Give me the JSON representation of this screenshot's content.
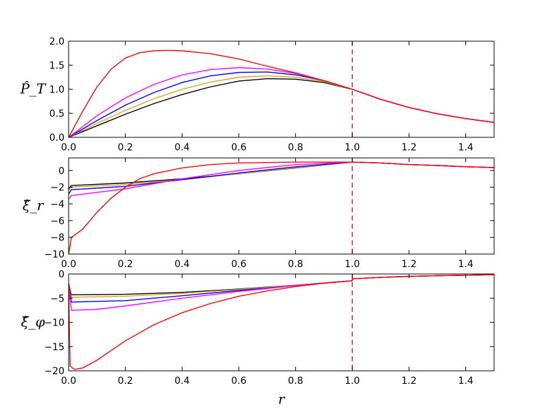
{
  "figure": {
    "xlabel": "r",
    "line_colors": [
      "#000000",
      "#daa520",
      "#0000ff",
      "#ff00ff",
      "#ff0000"
    ]
  },
  "chart_data": [
    {
      "type": "line",
      "ylabel": "P̂_T",
      "xlim": [
        0,
        1.5
      ],
      "ylim": [
        0,
        2.0
      ],
      "xticks": [
        "0.0",
        "0.2",
        "0.4",
        "0.6",
        "0.8",
        "1.0",
        "1.2",
        "1.4"
      ],
      "yticks": [
        "0.0",
        "0.5",
        "1.0",
        "1.5",
        "2.0"
      ],
      "vline": {
        "x": 1.0,
        "color": "#ff0000",
        "style": "dashed"
      },
      "series": [
        {
          "color": "#000000",
          "x": [
            0,
            0.1,
            0.2,
            0.3,
            0.4,
            0.5,
            0.6,
            0.7,
            0.8,
            0.9,
            1.0,
            1.1,
            1.2,
            1.3,
            1.4,
            1.5
          ],
          "y": [
            0,
            0.24,
            0.48,
            0.7,
            0.89,
            1.05,
            1.17,
            1.22,
            1.21,
            1.14,
            1.0,
            0.79,
            0.62,
            0.49,
            0.39,
            0.31
          ]
        },
        {
          "color": "#daa520",
          "x": [
            0,
            0.1,
            0.2,
            0.3,
            0.4,
            0.5,
            0.6,
            0.7,
            0.8,
            0.9,
            1.0,
            1.1,
            1.2,
            1.3,
            1.4,
            1.5
          ],
          "y": [
            0,
            0.29,
            0.56,
            0.8,
            1.0,
            1.15,
            1.25,
            1.28,
            1.25,
            1.16,
            1.0,
            0.79,
            0.62,
            0.49,
            0.39,
            0.31
          ]
        },
        {
          "color": "#0000ff",
          "x": [
            0,
            0.1,
            0.2,
            0.3,
            0.4,
            0.5,
            0.6,
            0.7,
            0.8,
            0.9,
            1.0,
            1.1,
            1.2,
            1.3,
            1.4,
            1.5
          ],
          "y": [
            0,
            0.35,
            0.67,
            0.93,
            1.14,
            1.28,
            1.35,
            1.36,
            1.3,
            1.18,
            1.0,
            0.79,
            0.62,
            0.49,
            0.39,
            0.31
          ]
        },
        {
          "color": "#ff00ff",
          "x": [
            0,
            0.1,
            0.2,
            0.3,
            0.4,
            0.5,
            0.6,
            0.7,
            0.8,
            0.9,
            1.0,
            1.1,
            1.2,
            1.3,
            1.4,
            1.5
          ],
          "y": [
            0,
            0.45,
            0.82,
            1.1,
            1.3,
            1.41,
            1.45,
            1.42,
            1.33,
            1.18,
            1.0,
            0.79,
            0.62,
            0.49,
            0.39,
            0.31
          ]
        },
        {
          "color": "#ff0000",
          "x": [
            0,
            0.05,
            0.1,
            0.15,
            0.2,
            0.25,
            0.3,
            0.35,
            0.4,
            0.5,
            0.6,
            0.7,
            0.8,
            0.9,
            1.0,
            1.1,
            1.2,
            1.3,
            1.4,
            1.5
          ],
          "y": [
            0,
            0.55,
            1.05,
            1.42,
            1.65,
            1.76,
            1.8,
            1.81,
            1.8,
            1.74,
            1.63,
            1.48,
            1.34,
            1.18,
            1.0,
            0.79,
            0.62,
            0.49,
            0.39,
            0.31
          ]
        }
      ]
    },
    {
      "type": "line",
      "ylabel": "ξ̂_r",
      "xlim": [
        0,
        1.5
      ],
      "ylim": [
        -10,
        1.5
      ],
      "xticks": [
        "0.0",
        "0.2",
        "0.4",
        "0.6",
        "0.8",
        "1.0",
        "1.2",
        "1.4"
      ],
      "yticks": [
        "−10",
        "−8",
        "−6",
        "−4",
        "−2",
        "0"
      ],
      "vline": {
        "x": 1.0,
        "color": "#ff0000",
        "style": "dashed"
      },
      "series": [
        {
          "color": "#000000",
          "x": [
            0,
            0.01,
            0.2,
            0.4,
            0.6,
            0.8,
            1.0,
            1.1,
            1.2,
            1.3,
            1.4,
            1.5
          ],
          "y": [
            -2.2,
            -1.8,
            -1.5,
            -1.0,
            -0.4,
            0.3,
            1.0,
            0.9,
            0.7,
            0.6,
            0.45,
            0.35
          ]
        },
        {
          "color": "#daa520",
          "x": [
            0,
            0.01,
            0.2,
            0.4,
            0.6,
            0.8,
            1.0,
            1.1,
            1.2,
            1.3,
            1.4,
            1.5
          ],
          "y": [
            -2.4,
            -2.0,
            -1.7,
            -1.1,
            -0.4,
            0.35,
            1.0,
            0.9,
            0.7,
            0.6,
            0.45,
            0.35
          ]
        },
        {
          "color": "#0000ff",
          "x": [
            0,
            0.01,
            0.2,
            0.4,
            0.6,
            0.8,
            1.0,
            1.1,
            1.2,
            1.3,
            1.4,
            1.5
          ],
          "y": [
            -2.8,
            -2.3,
            -1.9,
            -1.1,
            -0.3,
            0.45,
            1.0,
            0.9,
            0.7,
            0.6,
            0.45,
            0.35
          ]
        },
        {
          "color": "#ff00ff",
          "x": [
            0,
            0.01,
            0.2,
            0.4,
            0.6,
            0.8,
            1.0,
            1.1,
            1.2,
            1.3,
            1.4,
            1.5
          ],
          "y": [
            -3.4,
            -3.0,
            -2.2,
            -1.0,
            0.0,
            0.7,
            1.0,
            0.9,
            0.7,
            0.6,
            0.45,
            0.35
          ]
        },
        {
          "color": "#ff0000",
          "x": [
            0,
            0.01,
            0.05,
            0.1,
            0.15,
            0.2,
            0.25,
            0.3,
            0.4,
            0.5,
            0.6,
            0.8,
            1.0,
            1.1,
            1.2,
            1.3,
            1.4,
            1.5
          ],
          "y": [
            -10,
            -8.0,
            -7.0,
            -5.0,
            -3.3,
            -2.0,
            -1.0,
            -0.4,
            0.3,
            0.7,
            0.9,
            1.0,
            1.0,
            0.9,
            0.7,
            0.6,
            0.45,
            0.35
          ]
        }
      ]
    },
    {
      "type": "line",
      "ylabel": "ξ̂_φ",
      "xlim": [
        0,
        1.5
      ],
      "ylim": [
        -20,
        0
      ],
      "xticks": [
        "0.0",
        "0.2",
        "0.4",
        "0.6",
        "0.8",
        "1.0",
        "1.2",
        "1.4"
      ],
      "yticks": [
        "−20",
        "−15",
        "−10",
        "−5",
        "0"
      ],
      "vline": {
        "x": 1.0,
        "color": "#ff0000",
        "style": "dashed"
      },
      "series": [
        {
          "color": "#000000",
          "x": [
            0,
            0.01,
            0.2,
            0.4,
            0.6,
            0.8,
            1.0,
            1.0001,
            1.1,
            1.2,
            1.3,
            1.4,
            1.5
          ],
          "y": [
            -2.0,
            -4.3,
            -4.2,
            -3.8,
            -3.1,
            -2.3,
            -1.4,
            -1.0,
            -0.7,
            -0.5,
            -0.35,
            -0.25,
            -0.15
          ]
        },
        {
          "color": "#daa520",
          "x": [
            0,
            0.01,
            0.2,
            0.4,
            0.6,
            0.8,
            1.0,
            1.0001,
            1.1,
            1.2,
            1.3,
            1.4,
            1.5
          ],
          "y": [
            -2.0,
            -4.8,
            -4.6,
            -4.0,
            -3.2,
            -2.3,
            -1.4,
            -1.0,
            -0.7,
            -0.5,
            -0.35,
            -0.25,
            -0.15
          ]
        },
        {
          "color": "#0000ff",
          "x": [
            0,
            0.01,
            0.2,
            0.4,
            0.6,
            0.8,
            1.0,
            1.0001,
            1.1,
            1.2,
            1.3,
            1.4,
            1.5
          ],
          "y": [
            -2.0,
            -5.8,
            -5.5,
            -4.5,
            -3.4,
            -2.4,
            -1.4,
            -1.0,
            -0.7,
            -0.5,
            -0.35,
            -0.25,
            -0.15
          ]
        },
        {
          "color": "#ff00ff",
          "x": [
            0,
            0.01,
            0.1,
            0.2,
            0.4,
            0.6,
            0.8,
            1.0,
            1.0001,
            1.1,
            1.2,
            1.3,
            1.4,
            1.5
          ],
          "y": [
            -2.0,
            -7.5,
            -7.3,
            -6.6,
            -5.0,
            -3.6,
            -2.4,
            -1.4,
            -1.0,
            -0.7,
            -0.5,
            -0.35,
            -0.25,
            -0.15
          ]
        },
        {
          "color": "#ff0000",
          "x": [
            0,
            0.005,
            0.02,
            0.05,
            0.1,
            0.15,
            0.2,
            0.3,
            0.4,
            0.5,
            0.6,
            0.7,
            0.8,
            0.9,
            1.0,
            1.0001,
            1.1,
            1.2,
            1.3,
            1.4,
            1.5
          ],
          "y": [
            -2.0,
            -19.0,
            -19.7,
            -19.4,
            -17.8,
            -15.8,
            -13.8,
            -10.5,
            -8.0,
            -6.1,
            -4.6,
            -3.5,
            -2.6,
            -1.9,
            -1.4,
            -1.0,
            -0.7,
            -0.5,
            -0.35,
            -0.25,
            -0.15
          ]
        }
      ]
    }
  ]
}
